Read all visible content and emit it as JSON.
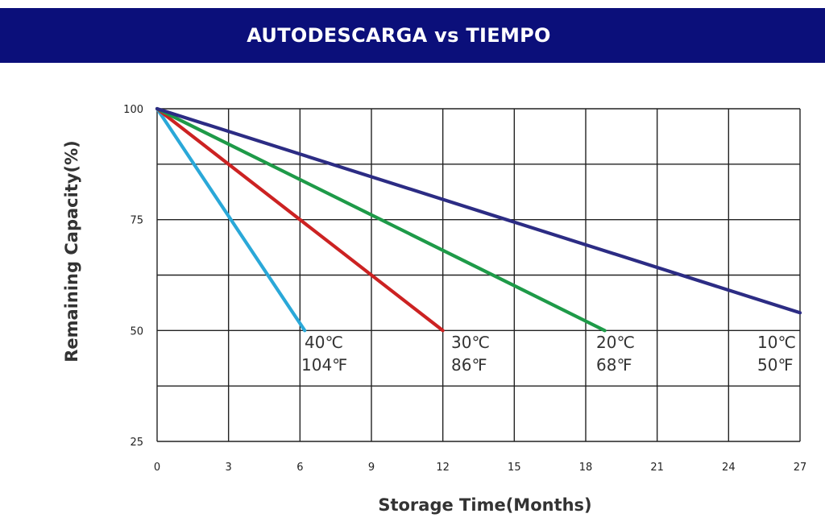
{
  "header": {
    "title": "AUTODESCARGA vs TIEMPO"
  },
  "chart_data": {
    "type": "line",
    "title": "AUTODESCARGA vs TIEMPO",
    "xlabel": "Storage Time(Months)",
    "ylabel": "Remaining  Capacity(%)",
    "xlim": [
      0,
      27
    ],
    "ylim": [
      25,
      100
    ],
    "xticks": [
      "0",
      "3",
      "6",
      "9",
      "12",
      "15",
      "18",
      "21",
      "24",
      "27"
    ],
    "yticks": [
      "100",
      "75",
      "50",
      "25"
    ],
    "grid": true,
    "series": [
      {
        "name": "40℃ 104℉",
        "label_c": "40℃",
        "label_f": "104℉",
        "color": "#2aa8d8",
        "x": [
          0,
          6.2
        ],
        "y": [
          100,
          50
        ]
      },
      {
        "name": "30℃ 86℉",
        "label_c": "30℃",
        "label_f": "86℉",
        "color": "#cc2222",
        "x": [
          0,
          12
        ],
        "y": [
          100,
          50
        ]
      },
      {
        "name": "20℃ 68℉",
        "label_c": "20℃",
        "label_f": "68℉",
        "color": "#1e9a48",
        "x": [
          0,
          18.8
        ],
        "y": [
          100,
          50
        ]
      },
      {
        "name": "10℃ 50℉",
        "label_c": "10℃",
        "label_f": "50℉",
        "color": "#2c2c84",
        "x": [
          0,
          27
        ],
        "y": [
          100,
          54
        ]
      }
    ]
  }
}
